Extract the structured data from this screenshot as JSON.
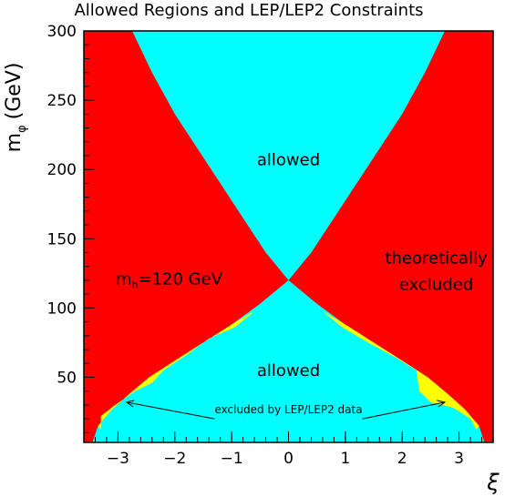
{
  "chart_data": {
    "type": "area",
    "title": "Allowed Regions and LEP/LEP2 Constraints",
    "xlabel": "ξ",
    "ylabel_main": "m",
    "ylabel_sub": "φ",
    "ylabel_unit": "(GeV)",
    "xlim": [
      -3.6,
      3.6
    ],
    "ylim": [
      3,
      300
    ],
    "xticks": [
      -3,
      -2,
      -1,
      0,
      1,
      2,
      3
    ],
    "xtick_labels": [
      "−3",
      "−2",
      "−1",
      "0",
      "1",
      "2",
      "3"
    ],
    "yticks": [
      50,
      100,
      150,
      200,
      250,
      300
    ],
    "ytick_labels": [
      "50",
      "100",
      "150",
      "200",
      "250",
      "300"
    ],
    "colors": {
      "theoretically_excluded": "#ff0000",
      "allowed": "#00ffff",
      "lep_excluded": "#ffff00",
      "frame": "#000000"
    },
    "regions": {
      "upper_allowed_boundary": [
        [
          -2.75,
          300
        ],
        [
          -2.4,
          270
        ],
        [
          -2.0,
          240
        ],
        [
          -1.6,
          215
        ],
        [
          -1.2,
          190
        ],
        [
          -0.8,
          165
        ],
        [
          -0.4,
          140
        ],
        [
          0.0,
          120
        ],
        [
          0.4,
          140
        ],
        [
          0.8,
          165
        ],
        [
          1.2,
          190
        ],
        [
          1.6,
          215
        ],
        [
          2.0,
          240
        ],
        [
          2.4,
          270
        ],
        [
          2.75,
          300
        ]
      ],
      "lower_allowed_boundary": [
        [
          -3.45,
          3
        ],
        [
          -3.35,
          15
        ],
        [
          -3.1,
          27
        ],
        [
          -2.8,
          38
        ],
        [
          -2.45,
          50
        ],
        [
          -2.0,
          62
        ],
        [
          -1.5,
          75
        ],
        [
          -1.0,
          88
        ],
        [
          -0.5,
          103
        ],
        [
          0.0,
          120
        ],
        [
          0.5,
          103
        ],
        [
          1.0,
          88
        ],
        [
          1.5,
          75
        ],
        [
          2.0,
          62
        ],
        [
          2.45,
          50
        ],
        [
          2.8,
          38
        ],
        [
          3.1,
          27
        ],
        [
          3.35,
          15
        ],
        [
          3.45,
          3
        ]
      ],
      "lep_excluded_left": [
        [
          -3.35,
          15
        ],
        [
          -3.1,
          27
        ],
        [
          -2.8,
          38
        ],
        [
          -2.45,
          50
        ],
        [
          -2.0,
          62
        ],
        [
          -1.5,
          75
        ],
        [
          -1.0,
          88
        ],
        [
          -0.6,
          98
        ],
        [
          -0.65,
          96
        ],
        [
          -0.95,
          86
        ],
        [
          -1.4,
          78
        ],
        [
          -1.8,
          66
        ],
        [
          -2.2,
          55
        ],
        [
          -2.4,
          46
        ],
        [
          -2.7,
          40
        ],
        [
          -3.05,
          30
        ],
        [
          -3.3,
          22
        ],
        [
          -3.3,
          12
        ]
      ],
      "lep_excluded_right": [
        [
          0.6,
          98
        ],
        [
          1.0,
          88
        ],
        [
          1.5,
          75
        ],
        [
          2.0,
          62
        ],
        [
          2.45,
          50
        ],
        [
          2.8,
          38
        ],
        [
          3.1,
          27
        ],
        [
          3.35,
          15
        ],
        [
          3.3,
          12
        ],
        [
          3.2,
          20
        ],
        [
          2.9,
          28
        ],
        [
          2.5,
          32
        ],
        [
          2.3,
          40
        ],
        [
          2.25,
          55
        ],
        [
          1.9,
          64
        ],
        [
          1.4,
          75
        ],
        [
          0.95,
          86
        ],
        [
          0.65,
          96
        ]
      ]
    },
    "annotations": [
      {
        "id": "allowed-upper",
        "text": "allowed",
        "x": 0.0,
        "y": 203
      },
      {
        "id": "allowed-lower",
        "text": "allowed",
        "x": 0.0,
        "y": 51
      },
      {
        "id": "mh-prefix",
        "text": "m",
        "x": -2.1,
        "y": 117
      },
      {
        "id": "mh-sub",
        "text": "h",
        "x": -2.1,
        "y": 117
      },
      {
        "id": "mh-rest",
        "text": "=120 GeV",
        "x": -2.1,
        "y": 117
      },
      {
        "id": "theoretically",
        "text": "theoretically",
        "x": 2.6,
        "y": 132
      },
      {
        "id": "excluded",
        "text": "excluded",
        "x": 2.6,
        "y": 113
      },
      {
        "id": "lep-label",
        "text": "excluded by LEP/LEP2 data",
        "x": 0.0,
        "y": 24
      }
    ],
    "arrows": [
      {
        "id": "arrow-left",
        "from": [
          -1.3,
          20
        ],
        "to": [
          -2.85,
          32
        ]
      },
      {
        "id": "arrow-right",
        "from": [
          1.3,
          20
        ],
        "to": [
          2.75,
          32
        ]
      }
    ]
  }
}
